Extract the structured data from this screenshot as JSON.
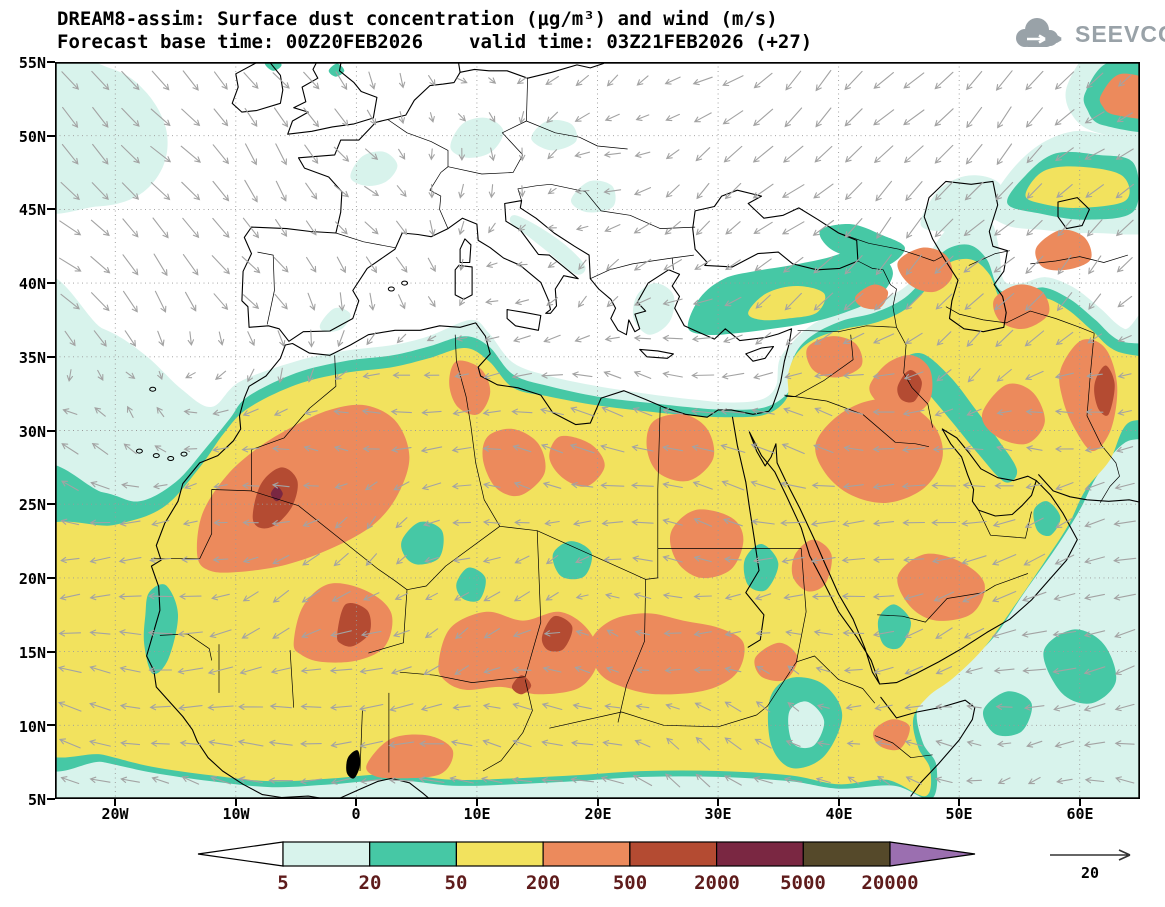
{
  "header": {
    "title": "DREAM8-assim: Surface dust concentration (μg/m³) and wind (m/s)",
    "forecast_base": "Forecast base time: 00Z20FEB2026",
    "valid_time": "valid time: 03Z21FEB2026 (+27)",
    "logo_text": "SEEVCCC"
  },
  "map": {
    "lat_ticks": [
      "55N",
      "50N",
      "45N",
      "40N",
      "35N",
      "30N",
      "25N",
      "20N",
      "15N",
      "10N",
      "5N"
    ],
    "lon_ticks": [
      "20W",
      "10W",
      "0",
      "10E",
      "20E",
      "30E",
      "40E",
      "50E",
      "60E"
    ]
  },
  "colorbar": {
    "labels": [
      "5",
      "20",
      "50",
      "200",
      "500",
      "2000",
      "5000",
      "20000"
    ],
    "colors": [
      "#ffffff",
      "#d8f3ec",
      "#46c8a5",
      "#f2e25e",
      "#ec8a5c",
      "#b44b32",
      "#7a2742",
      "#55492a",
      "#9b6fb0"
    ]
  },
  "wind_legend": {
    "value": "20"
  },
  "chart_data": {
    "type": "heatmap",
    "model": "DREAM8-assim",
    "variable": "Surface dust concentration (μg/m³) and wind (m/s)",
    "forecast_base_time": "00Z20FEB2026",
    "valid_time": "03Z21FEB2026",
    "forecast_offset_hours": 27,
    "contour_levels_ugm3": [
      5,
      20,
      50,
      200,
      500,
      2000,
      5000,
      20000
    ],
    "lat_tick_values": [
      55,
      50,
      45,
      40,
      35,
      30,
      25,
      20,
      15,
      10,
      5
    ],
    "lon_tick_values": [
      -20,
      -10,
      0,
      10,
      20,
      30,
      40,
      50,
      60
    ],
    "wind_reference_ms": 20
  }
}
